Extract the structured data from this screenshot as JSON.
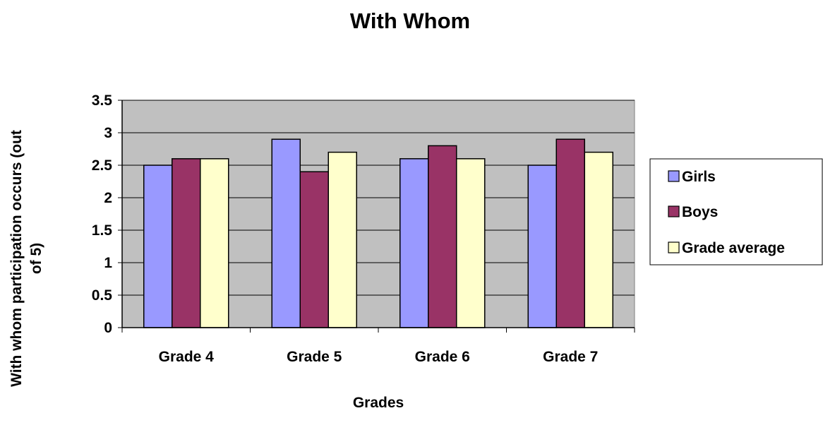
{
  "chart_data": {
    "type": "bar",
    "title": "With Whom",
    "xlabel": "Grades",
    "ylabel": "With whom participation occurs (out of 5)",
    "ylabel_lines": [
      "With whom participation occurs (out",
      "of 5)"
    ],
    "categories": [
      "Grade 4",
      "Grade 5",
      "Grade 6",
      "Grade 7"
    ],
    "series": [
      {
        "name": "Girls",
        "values": [
          2.5,
          2.9,
          2.6,
          2.5
        ],
        "color": "#9999ff"
      },
      {
        "name": "Boys",
        "values": [
          2.6,
          2.4,
          2.8,
          2.9
        ],
        "color": "#993366"
      },
      {
        "name": "Grade average",
        "values": [
          2.6,
          2.7,
          2.6,
          2.7
        ],
        "color": "#ffffcc"
      }
    ],
    "ylim": [
      0,
      3.5
    ],
    "yticks": [
      "0",
      "0.5",
      "1",
      "1.5",
      "2",
      "2.5",
      "3",
      "3.5"
    ],
    "grid": true,
    "plot_background": "#c0c0c0",
    "legend_position": "right"
  }
}
